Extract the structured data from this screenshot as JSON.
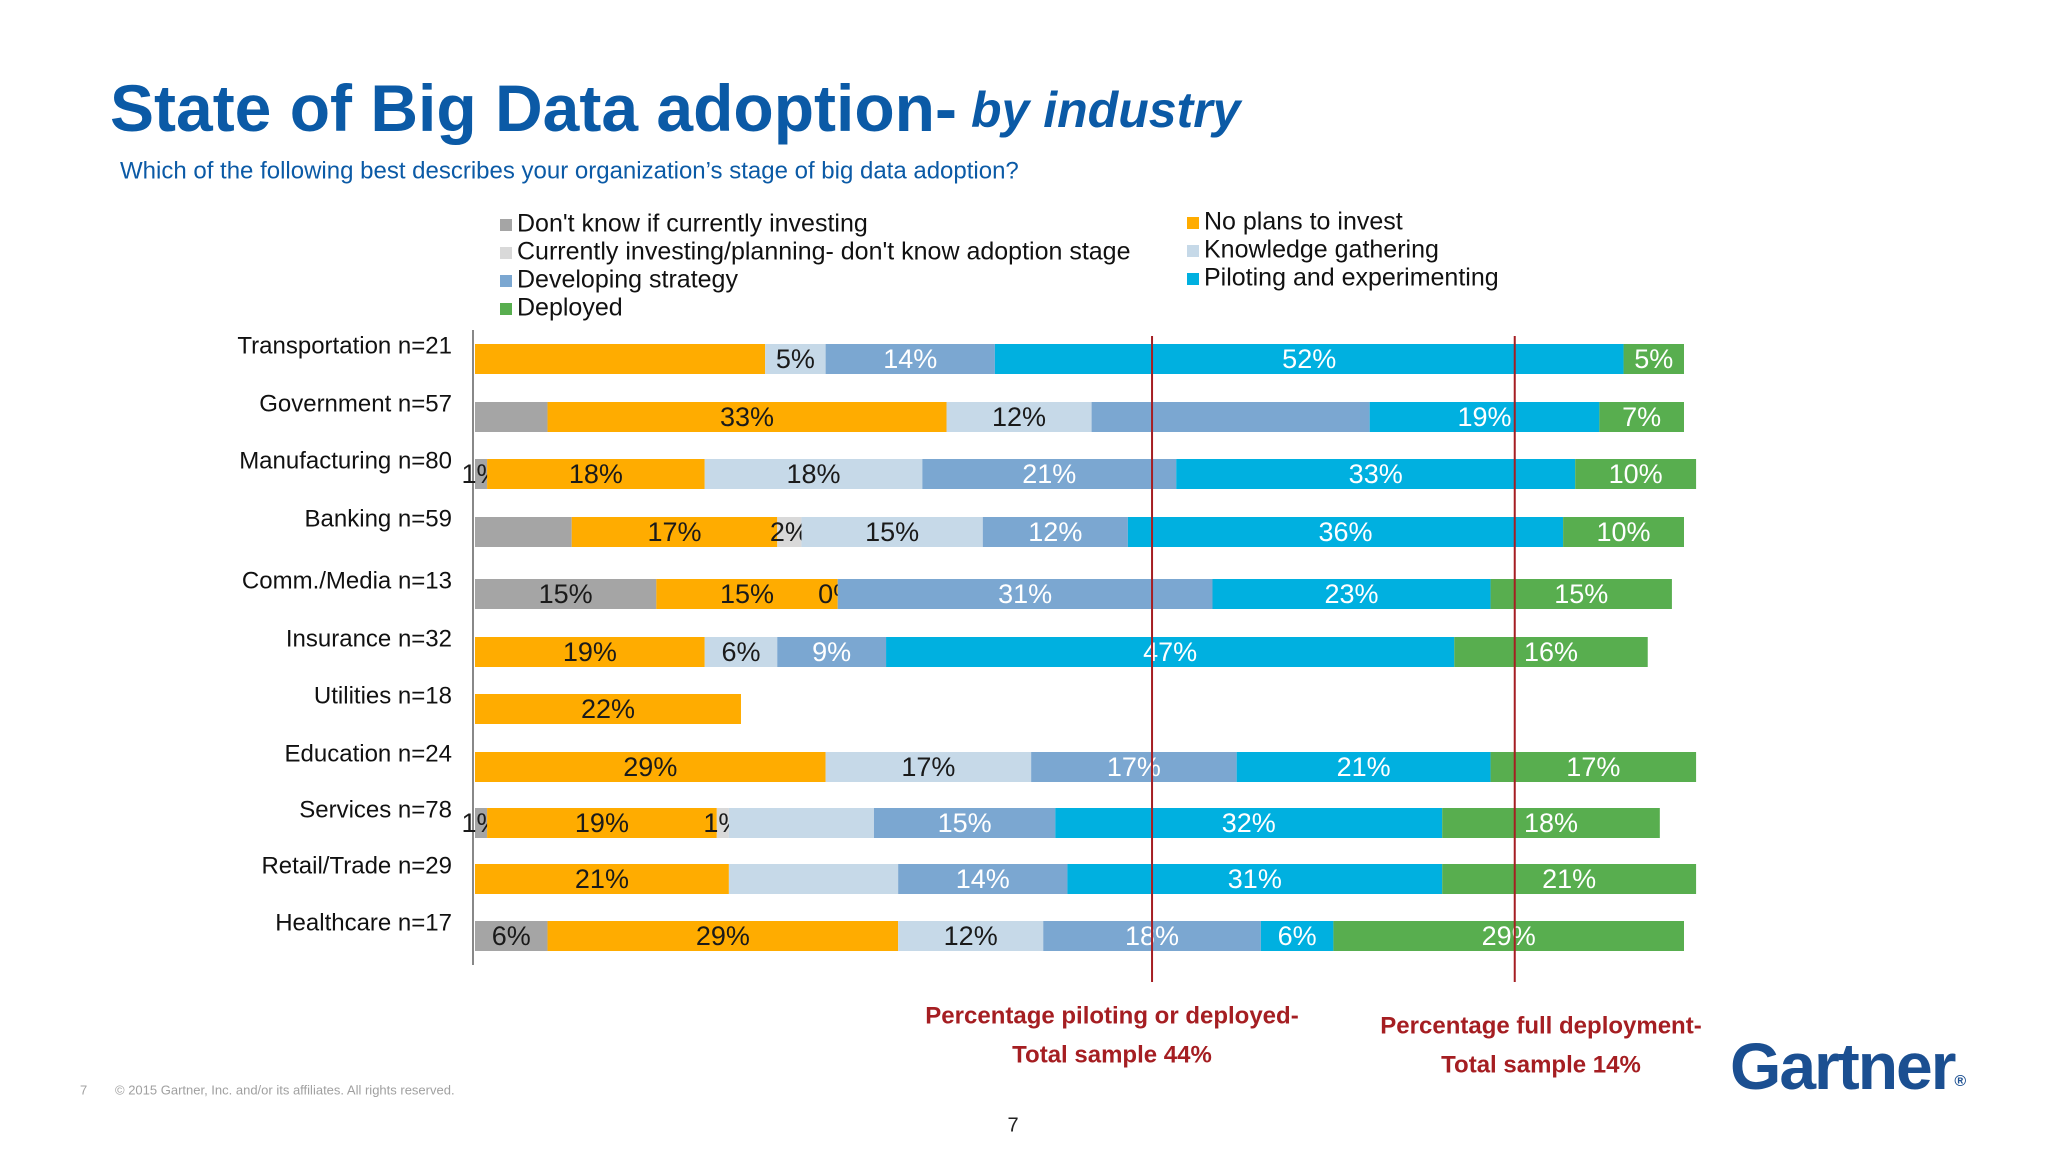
{
  "chart_data": {
    "type": "stacked-barh",
    "title": "State of Big Data adoption-",
    "title_emphasis": "by industry",
    "subtitle": "Which of the following best describes your organization’s stage of big data adoption?",
    "categories": [
      "Transportation n=21",
      "Government n=57",
      "Manufacturing n=80",
      "Banking n=59",
      "Comm./Media n=13",
      "Insurance n=32",
      "Utilities n=18",
      "Education n=24",
      "Services n=78",
      "Retail/Trade n=29",
      "Healthcare n=17"
    ],
    "xlim": [
      0,
      100
    ],
    "series": [
      {
        "name": "Don't know if currently investing",
        "color": "#a5a5a5",
        "label_color": "#1a1a1a",
        "values": [
          0,
          6,
          1,
          8,
          15,
          0,
          null,
          0,
          1,
          0,
          6
        ],
        "value_labels": [
          null,
          null,
          "1%",
          null,
          "15%",
          null,
          null,
          null,
          "1%",
          null,
          "6%"
        ]
      },
      {
        "name": "No plans to invest",
        "color": "#ffac00",
        "label_color": "#1a1a1a",
        "values": [
          24,
          33,
          18,
          17,
          15,
          19,
          22,
          29,
          19,
          21,
          29
        ],
        "value_labels": [
          null,
          "33%",
          "18%",
          "17%",
          "15%",
          "19%",
          "22%",
          "29%",
          "19%",
          "21%",
          "29%"
        ]
      },
      {
        "name": "Currently investing/planning- don't know adoption stage",
        "color": "#d9d9d9",
        "label_color": "#1a1a1a",
        "values": [
          0,
          0,
          0,
          2,
          0,
          0,
          null,
          0,
          1,
          0,
          0
        ],
        "value_labels": [
          null,
          null,
          null,
          "2%",
          "0%",
          null,
          null,
          null,
          "1%",
          null,
          null
        ]
      },
      {
        "name": "Knowledge gathering",
        "color": "#c6d9e8",
        "label_color": "#1a1a1a",
        "values": [
          5,
          12,
          18,
          15,
          0,
          6,
          null,
          17,
          12,
          14,
          12
        ],
        "value_labels": [
          "5%",
          "12%",
          "18%",
          "15%",
          null,
          "6%",
          null,
          "17%",
          null,
          null,
          "12%"
        ]
      },
      {
        "name": "Developing strategy",
        "color": "#7ba7d1",
        "label_color": "#ffffff",
        "values": [
          14,
          23,
          21,
          12,
          31,
          9,
          null,
          17,
          15,
          14,
          18
        ],
        "value_labels": [
          "14%",
          null,
          "21%",
          "12%",
          "31%",
          "9%",
          null,
          "17%",
          "15%",
          "14%",
          "18%"
        ]
      },
      {
        "name": "Piloting and experimenting",
        "color": "#00b0e0",
        "label_color": "#ffffff",
        "values": [
          52,
          19,
          33,
          36,
          23,
          47,
          null,
          21,
          32,
          31,
          6
        ],
        "value_labels": [
          "52%",
          "19%",
          "33%",
          "36%",
          "23%",
          "47%",
          null,
          "21%",
          "32%",
          "31%",
          "6%"
        ]
      },
      {
        "name": "Deployed",
        "color": "#58ae4f",
        "label_color": "#ffffff",
        "values": [
          5,
          7,
          10,
          10,
          15,
          16,
          null,
          17,
          18,
          21,
          29
        ],
        "value_labels": [
          "5%",
          "7%",
          "10%",
          "10%",
          "15%",
          "16%",
          null,
          "17%",
          "18%",
          "21%",
          "29%"
        ]
      }
    ],
    "reference_lines": [
      {
        "value": 56,
        "color": "#a51e22",
        "label": [
          "Percentage piloting or deployed-",
          "Total sample 44%"
        ]
      },
      {
        "value": 86,
        "color": "#a51e22",
        "label": [
          "Percentage full deployment-",
          "Total sample 14%"
        ]
      }
    ]
  },
  "footer": {
    "slide_number": "7",
    "copyright": "© 2015 Gartner, Inc. and/or its affiliates. All rights reserved.",
    "page_number": "7"
  },
  "logo": {
    "text": "Gartner",
    "mark": "®"
  }
}
